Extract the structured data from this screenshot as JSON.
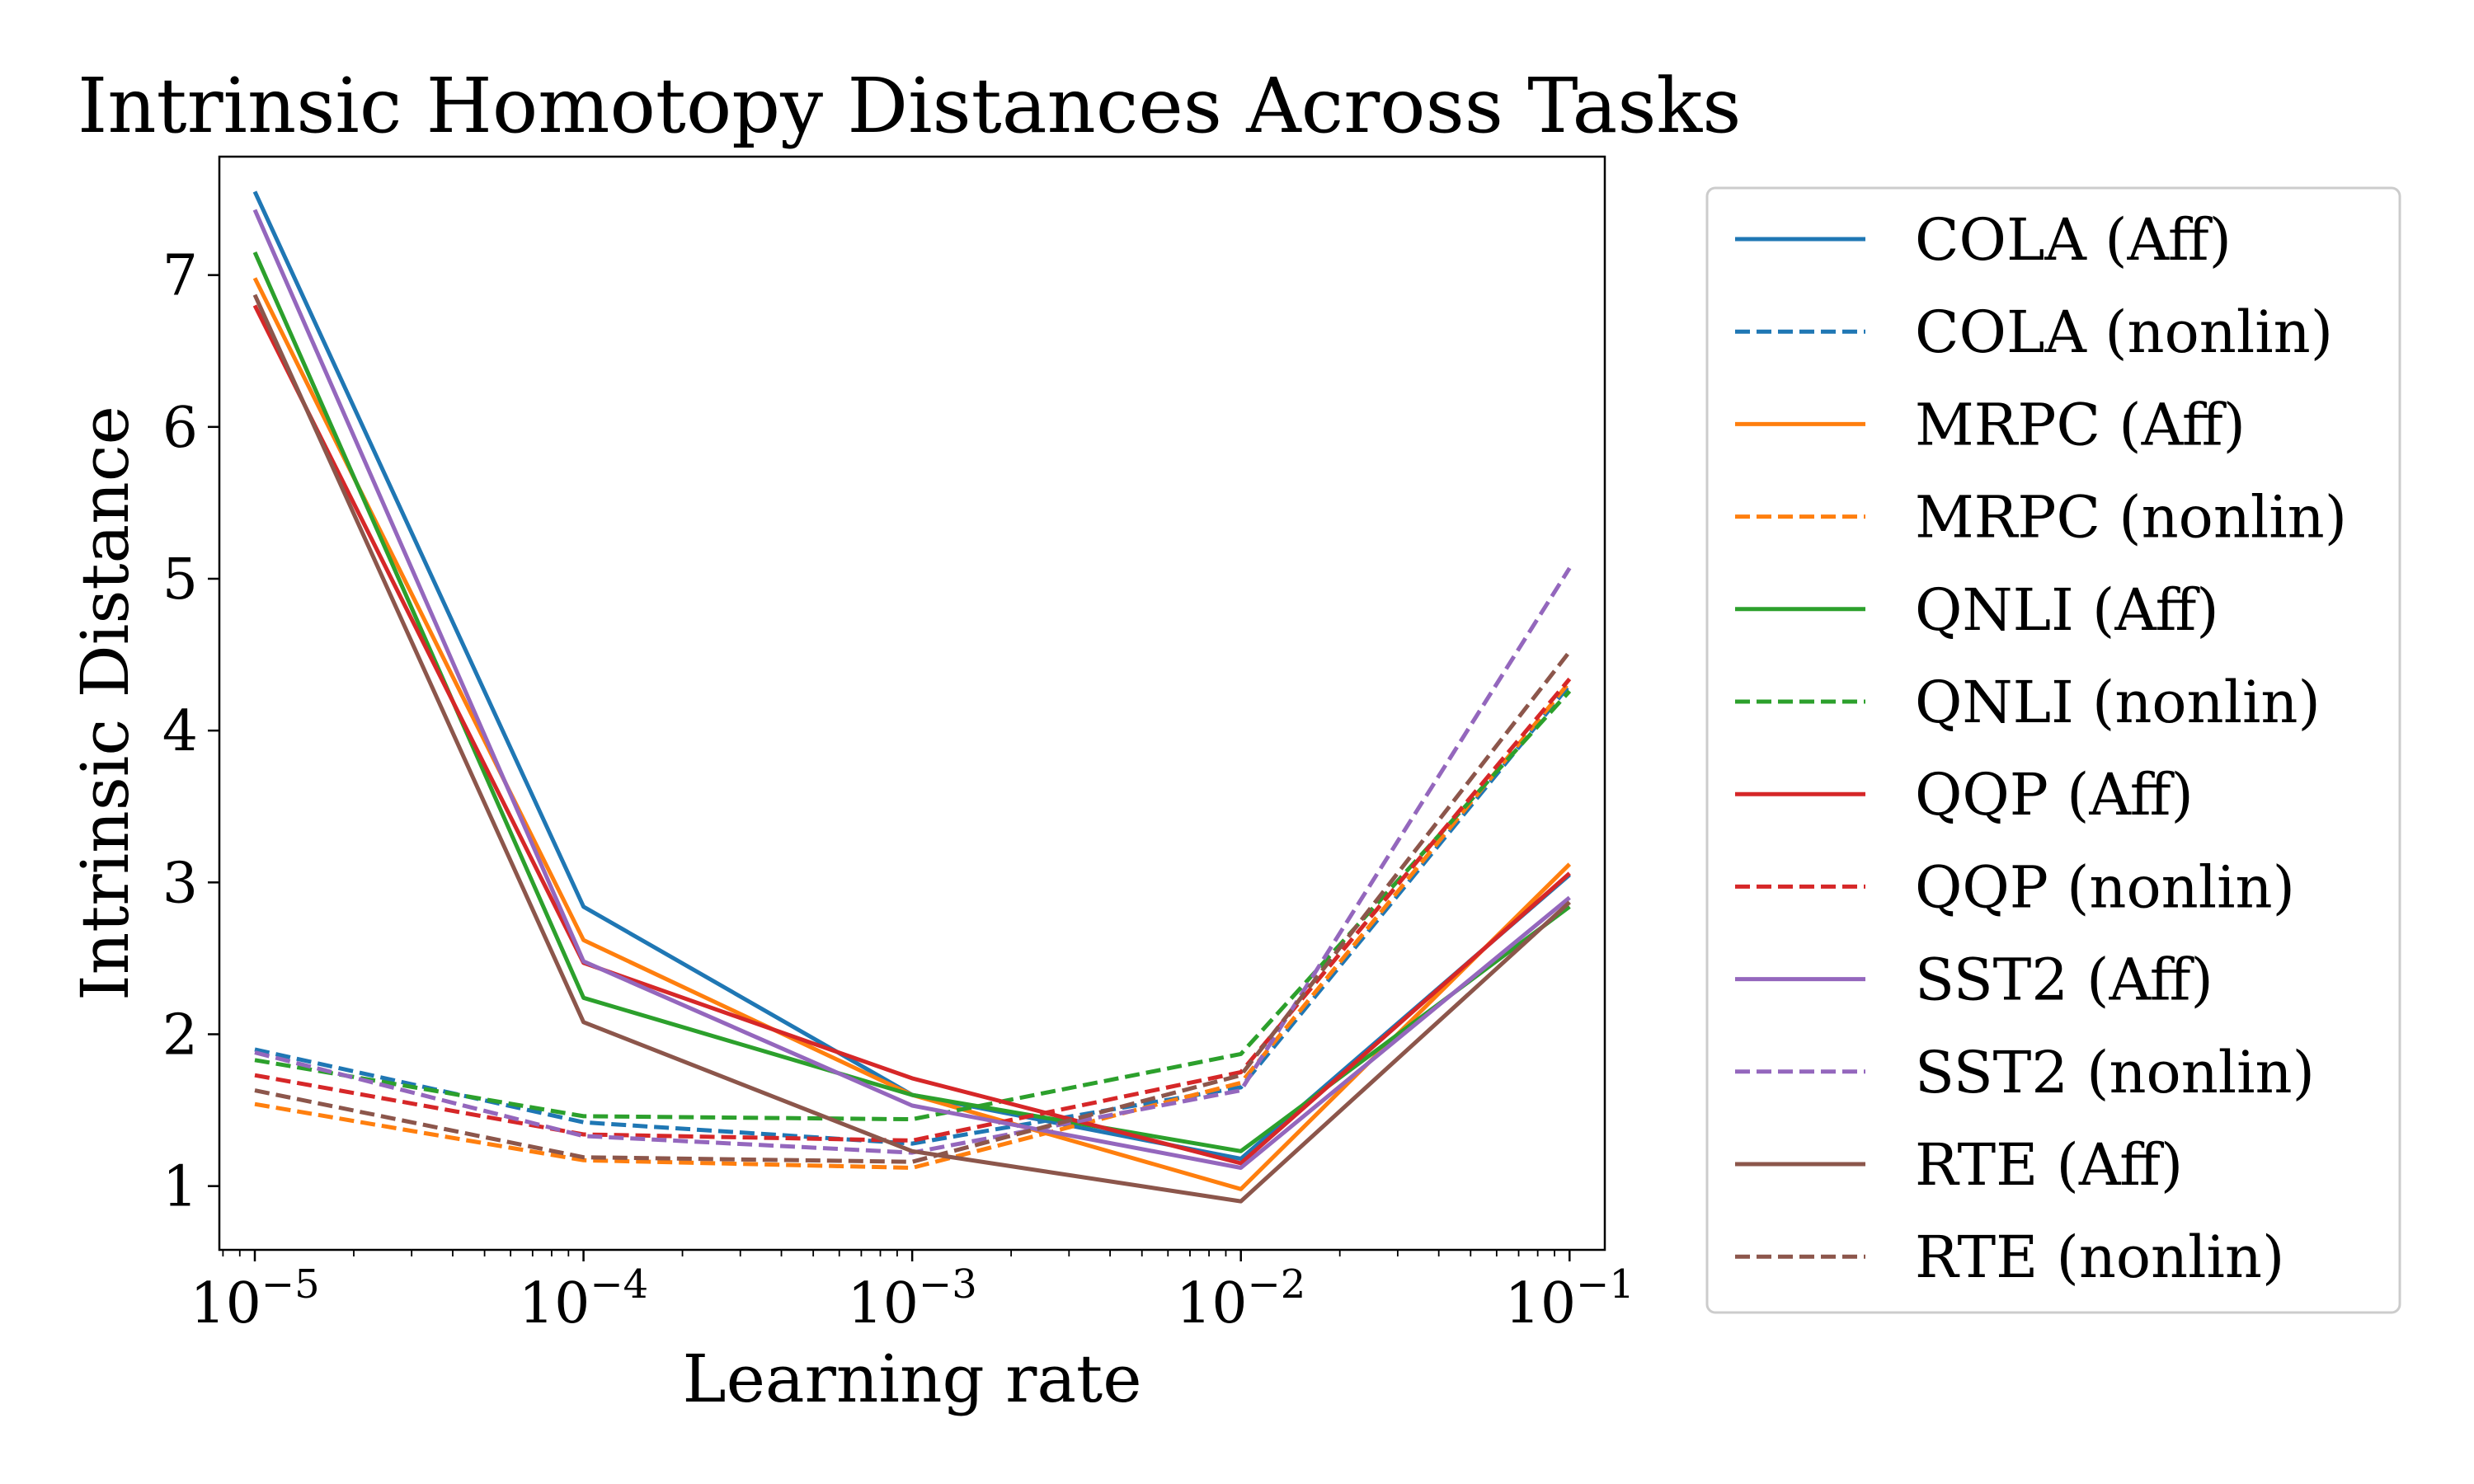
{
  "chart_data": {
    "type": "line",
    "title": "Intrinsic Homotopy Distances Across Tasks",
    "xlabel": "Learning rate",
    "ylabel": "Intrinsic Distance",
    "x": [
      1e-05,
      0.0001,
      0.001,
      0.01,
      0.1
    ],
    "x_scale": "log",
    "x_ticks": [
      {
        "value": 1e-05,
        "base": "10",
        "exp": "−5"
      },
      {
        "value": 0.0001,
        "base": "10",
        "exp": "−4"
      },
      {
        "value": 0.001,
        "base": "10",
        "exp": "−3"
      },
      {
        "value": 0.01,
        "base": "10",
        "exp": "−2"
      },
      {
        "value": 0.1,
        "base": "10",
        "exp": "−1"
      }
    ],
    "xlim": [
      7.8e-06,
      0.128
    ],
    "ylim": [
      0.58,
      7.78
    ],
    "y_ticks": [
      1,
      2,
      3,
      4,
      5,
      6,
      7
    ],
    "grid": false,
    "legend_position": "outside-right",
    "series": [
      {
        "name": "COLA (Aff)",
        "color": "#1f77b4",
        "dashed": false,
        "values": [
          7.55,
          2.84,
          1.6,
          1.18,
          3.05
        ]
      },
      {
        "name": "COLA (nonlin)",
        "color": "#1f77b4",
        "dashed": true,
        "values": [
          1.9,
          1.42,
          1.28,
          1.65,
          4.3
        ]
      },
      {
        "name": "MRPC (Aff)",
        "color": "#ff7f0e",
        "dashed": false,
        "values": [
          6.98,
          2.62,
          1.6,
          0.98,
          3.12
        ]
      },
      {
        "name": "MRPC (nonlin)",
        "color": "#ff7f0e",
        "dashed": true,
        "values": [
          1.54,
          1.17,
          1.12,
          1.68,
          4.32
        ]
      },
      {
        "name": "QNLI (Aff)",
        "color": "#2ca02c",
        "dashed": false,
        "values": [
          7.15,
          2.24,
          1.6,
          1.23,
          2.84
        ]
      },
      {
        "name": "QNLI (nonlin)",
        "color": "#2ca02c",
        "dashed": true,
        "values": [
          1.83,
          1.46,
          1.44,
          1.87,
          4.26
        ]
      },
      {
        "name": "QQP (Aff)",
        "color": "#d62728",
        "dashed": false,
        "values": [
          6.8,
          2.47,
          1.71,
          1.15,
          3.06
        ]
      },
      {
        "name": "QQP (nonlin)",
        "color": "#d62728",
        "dashed": true,
        "values": [
          1.73,
          1.34,
          1.3,
          1.75,
          4.34
        ]
      },
      {
        "name": "SST2 (Aff)",
        "color": "#9467bd",
        "dashed": false,
        "values": [
          7.43,
          2.48,
          1.53,
          1.12,
          2.9
        ]
      },
      {
        "name": "SST2 (nonlin)",
        "color": "#9467bd",
        "dashed": true,
        "values": [
          1.88,
          1.33,
          1.22,
          1.63,
          5.07
        ]
      },
      {
        "name": "RTE (Aff)",
        "color": "#8c564b",
        "dashed": false,
        "values": [
          6.87,
          2.08,
          1.23,
          0.9,
          2.87
        ]
      },
      {
        "name": "RTE (nonlin)",
        "color": "#8c564b",
        "dashed": true,
        "values": [
          1.63,
          1.19,
          1.16,
          1.73,
          4.52
        ]
      }
    ]
  }
}
